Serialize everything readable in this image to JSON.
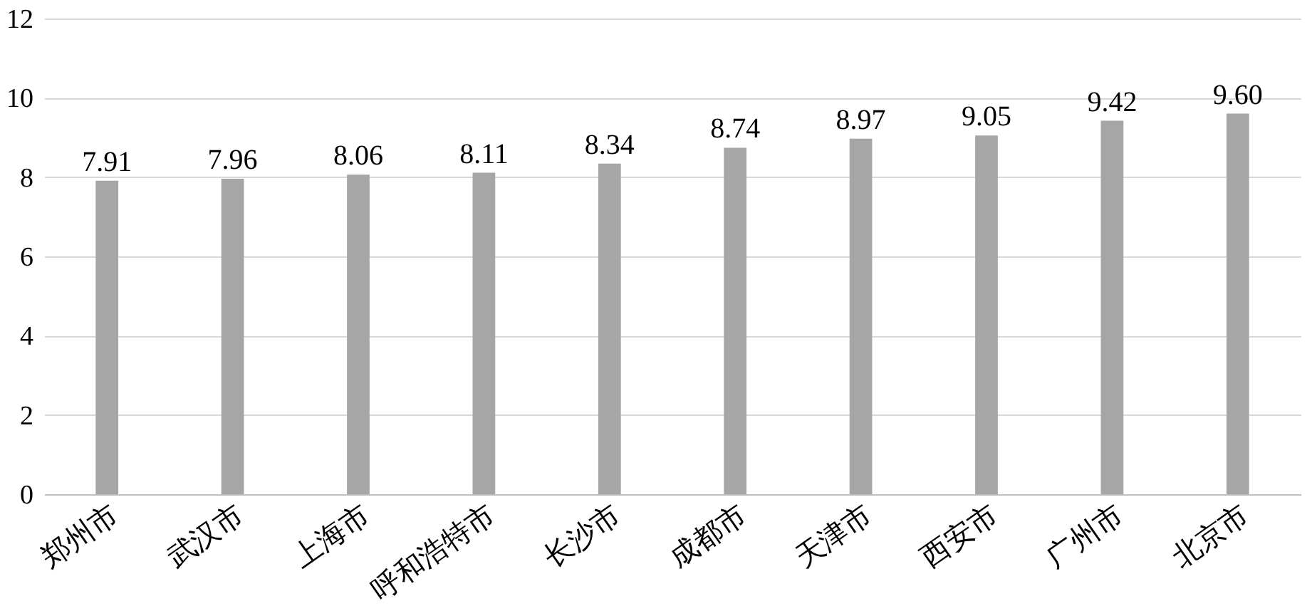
{
  "chart_data": {
    "type": "bar",
    "categories": [
      "郑州市",
      "武汉市",
      "上海市",
      "呼和浩特市",
      "长沙市",
      "成都市",
      "天津市",
      "西安市",
      "广州市",
      "北京市"
    ],
    "values": [
      7.91,
      7.96,
      8.06,
      8.11,
      8.34,
      8.74,
      8.97,
      9.05,
      9.42,
      9.6
    ],
    "value_labels": [
      "7.91",
      "7.96",
      "8.06",
      "8.11",
      "8.34",
      "8.74",
      "8.97",
      "9.05",
      "9.42",
      "9.60"
    ],
    "color": "#a6a6a6",
    "ylim": [
      0,
      12
    ],
    "yticks": [
      0,
      2,
      4,
      6,
      8,
      10,
      12
    ],
    "grid": "y"
  }
}
